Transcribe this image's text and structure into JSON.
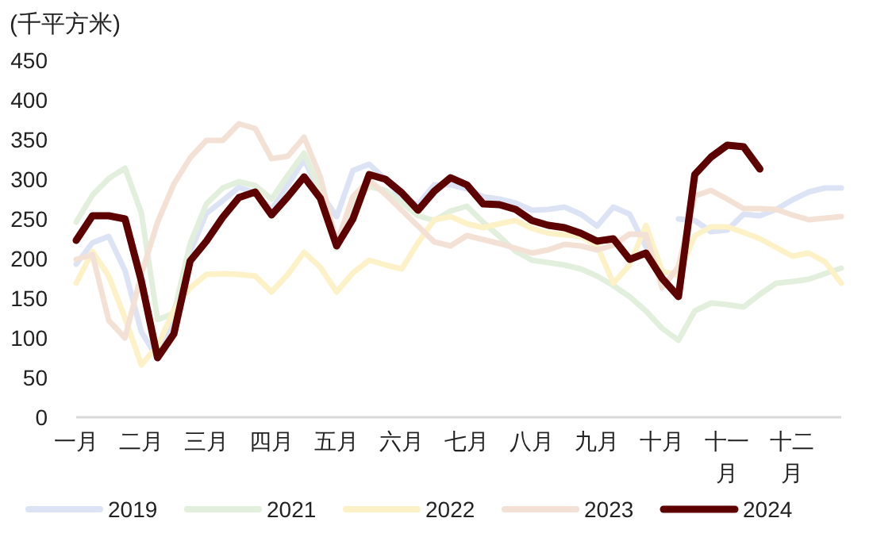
{
  "chart_data": {
    "type": "line",
    "ylabel": "(千平方米)",
    "ylim": [
      0,
      450
    ],
    "categories": [
      "一月",
      null,
      null,
      null,
      "二月",
      null,
      null,
      null,
      "三月",
      null,
      null,
      null,
      "四月",
      null,
      null,
      null,
      "五月",
      null,
      null,
      null,
      "六月",
      null,
      null,
      null,
      "七月",
      null,
      null,
      null,
      "八月",
      null,
      null,
      null,
      "九月",
      null,
      null,
      null,
      "十月",
      null,
      null,
      null,
      "十一月",
      null,
      null,
      null,
      "十二月",
      null,
      null,
      null
    ],
    "yticks": [
      0,
      50,
      100,
      150,
      200,
      250,
      300,
      350,
      400,
      450
    ],
    "legend": "bottom",
    "line_style": "solid",
    "series": [
      {
        "name": "2019",
        "color": "#dce3f5",
        "values": [
          193,
          220,
          228,
          185,
          108,
          74,
          124,
          208,
          257,
          273,
          290,
          283,
          261,
          293,
          325,
          283,
          253,
          311,
          319,
          300,
          276,
          268,
          293,
          293,
          288,
          278,
          275,
          270,
          261,
          262,
          265,
          256,
          241,
          265,
          256,
          215,
          null,
          250,
          248,
          234,
          236,
          256,
          254,
          262,
          274,
          284,
          289,
          289
        ]
      },
      {
        "name": "2021",
        "color": "#e2efdc",
        "values": [
          246,
          280,
          301,
          314,
          258,
          123,
          131,
          219,
          269,
          289,
          297,
          292,
          275,
          305,
          333,
          286,
          213,
          268,
          291,
          286,
          271,
          254,
          248,
          260,
          266,
          246,
          228,
          209,
          198,
          195,
          192,
          187,
          178,
          166,
          152,
          134,
          112,
          97,
          134,
          144,
          142,
          139,
          155,
          169,
          171,
          174,
          181,
          188
        ]
      },
      {
        "name": "2022",
        "color": "#fcf1c7",
        "values": [
          169,
          209,
          178,
          125,
          66,
          90,
          135,
          163,
          180,
          181,
          180,
          178,
          158,
          180,
          208,
          189,
          158,
          182,
          198,
          192,
          187,
          220,
          249,
          253,
          244,
          239,
          244,
          248,
          238,
          232,
          230,
          228,
          216,
          169,
          192,
          242,
          184,
          179,
          229,
          240,
          240,
          233,
          225,
          214,
          203,
          207,
          196,
          169
        ]
      },
      {
        "name": "2023",
        "color": "#f3e1d5",
        "values": [
          199,
          205,
          122,
          100,
          180,
          246,
          294,
          327,
          349,
          349,
          370,
          364,
          326,
          329,
          353,
          303,
          219,
          278,
          299,
          281,
          261,
          241,
          221,
          216,
          229,
          224,
          219,
          213,
          207,
          211,
          218,
          216,
          211,
          217,
          231,
          230,
          163,
          190,
          279,
          286,
          275,
          263,
          263,
          262,
          255,
          249,
          251,
          253
        ]
      },
      {
        "name": "2024",
        "color": "#5c0000",
        "values": [
          223,
          254,
          254,
          250,
          172,
          75,
          105,
          197,
          222,
          252,
          277,
          284,
          255,
          278,
          303,
          276,
          216,
          250,
          306,
          300,
          283,
          261,
          285,
          302,
          293,
          269,
          268,
          262,
          248,
          242,
          239,
          232,
          222,
          225,
          199,
          207,
          175,
          152,
          306,
          328,
          343,
          341,
          313,
          null,
          null,
          null,
          null,
          null
        ]
      }
    ]
  }
}
